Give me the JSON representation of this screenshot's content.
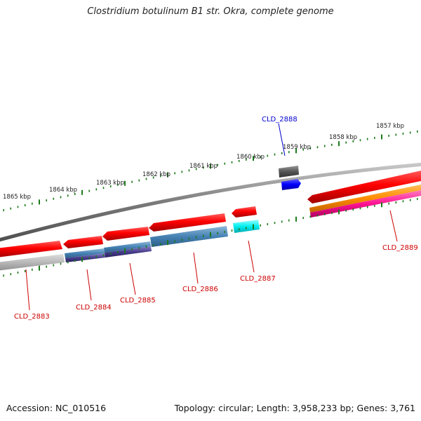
{
  "title": "Clostridium botulinum B1 str. Okra, complete genome",
  "footer": {
    "accession": "Accession: NC_010516",
    "summary": "Topology: circular; Length: 3,958,233 bp; Genes: 3,761"
  },
  "ticks": [
    "1865 kbp",
    "1864 kbp",
    "1863 kbp",
    "1862 kbp",
    "1861 kbp",
    "1860 kbp",
    "1859 kbp",
    "1858 kbp",
    "1857 kbp"
  ],
  "genes": [
    {
      "id": "CLD_2883",
      "color": "#cc0000"
    },
    {
      "id": "CLD_2884",
      "color": "#cc0000"
    },
    {
      "id": "CLD_2885",
      "color": "#cc0000"
    },
    {
      "id": "CLD_2886",
      "color": "#cc0000"
    },
    {
      "id": "CLD_2887",
      "color": "#cc0000"
    },
    {
      "id": "CLD_2888",
      "color": "#0000cc"
    },
    {
      "id": "CLD_2889",
      "color": "#cc0000"
    }
  ],
  "colors": {
    "backbone": "#808080",
    "cds": "#ff0000",
    "tick": "#1a7a1a",
    "cog_steelblue": "#4682b4",
    "cog_darkslateblue": "#483d8b",
    "cog_gray": "#b0b0b0",
    "cog_cyan": "#00e5ee",
    "cog_orange": "#ff8c00",
    "cog_pink": "#ff1493",
    "reverse_gene_dark": "#555555",
    "reverse_gene_blue": "#0000ff"
  }
}
